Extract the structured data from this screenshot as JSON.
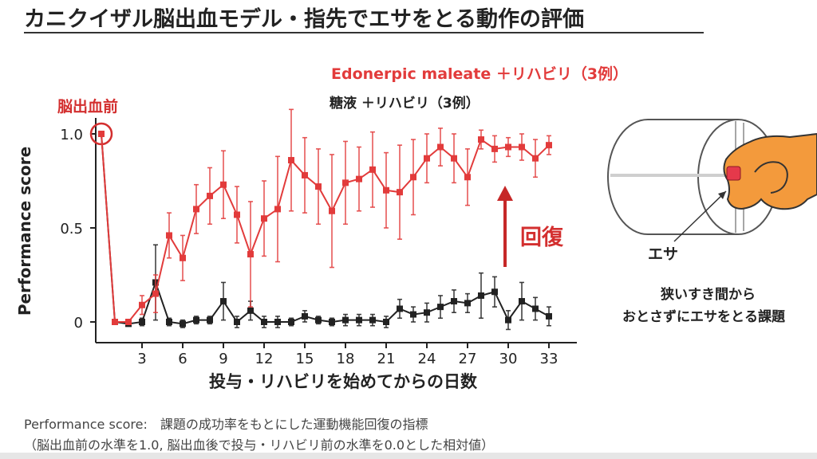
{
  "title": "カニクイザル脳出血モデル・指先でエサをとる動作の評価",
  "chart_data": {
    "type": "line",
    "ylabel": "Performance score",
    "xlabel": "投与・リハビリを始めてからの日数",
    "xlim": [
      -1,
      34.5
    ],
    "ylim": [
      -0.06,
      1.06
    ],
    "yticks": [
      0,
      0.5,
      1.0
    ],
    "ytick_labels": [
      "0",
      "0.5",
      "1.0"
    ],
    "xticks": [
      3,
      6,
      9,
      12,
      15,
      18,
      21,
      24,
      27,
      30,
      33
    ],
    "xtick_labels": [
      "3",
      "6",
      "9",
      "12",
      "15",
      "18",
      "21",
      "24",
      "27",
      "30",
      "33"
    ],
    "pre_label": "脳出血前",
    "pre_point": {
      "x": 0,
      "y": 1.0
    },
    "series": [
      {
        "name": "Edonerpic maleate ＋リハビリ（3例）",
        "color": "#e23b3b",
        "x": [
          0,
          1,
          2,
          3,
          4,
          5,
          6,
          7,
          8,
          9,
          10,
          11,
          12,
          13,
          14,
          15,
          16,
          17,
          18,
          19,
          20,
          21,
          22,
          23,
          24,
          25,
          26,
          27,
          28,
          29,
          30,
          31,
          32,
          33
        ],
        "y": [
          1.0,
          0.0,
          0.0,
          0.09,
          0.15,
          0.46,
          0.34,
          0.6,
          0.67,
          0.73,
          0.57,
          0.36,
          0.55,
          0.6,
          0.86,
          0.78,
          0.72,
          0.59,
          0.74,
          0.76,
          0.81,
          0.7,
          0.69,
          0.77,
          0.87,
          0.93,
          0.87,
          0.77,
          0.97,
          0.92,
          0.93,
          0.93,
          0.87,
          0.94
        ],
        "err": [
          0,
          0,
          0,
          0.05,
          0.1,
          0.12,
          0.12,
          0.13,
          0.15,
          0.18,
          0.15,
          0.28,
          0.2,
          0.28,
          0.27,
          0.2,
          0.2,
          0.3,
          0.22,
          0.17,
          0.2,
          0.2,
          0.25,
          0.2,
          0.13,
          0.1,
          0.13,
          0.15,
          0.05,
          0.07,
          0.05,
          0.07,
          0.1,
          0.05
        ]
      },
      {
        "name": "糖液 ＋リハビリ（3例）",
        "color": "#222222",
        "x": [
          0,
          1,
          2,
          3,
          4,
          5,
          6,
          7,
          8,
          9,
          10,
          11,
          12,
          13,
          14,
          15,
          16,
          17,
          18,
          19,
          20,
          21,
          22,
          23,
          24,
          25,
          26,
          27,
          28,
          29,
          30,
          31,
          32,
          33
        ],
        "y": [
          1.0,
          0.0,
          -0.01,
          0.0,
          0.21,
          0.0,
          -0.01,
          0.01,
          0.01,
          0.11,
          0.0,
          0.06,
          0.0,
          0.0,
          0.0,
          0.03,
          0.01,
          0.0,
          0.01,
          0.01,
          0.01,
          0.0,
          0.07,
          0.04,
          0.05,
          0.08,
          0.11,
          0.1,
          0.14,
          0.16,
          0.01,
          0.11,
          0.07,
          0.03
        ],
        "err": [
          0,
          0,
          0.01,
          0.02,
          0.2,
          0.02,
          0.02,
          0.02,
          0.02,
          0.1,
          0.03,
          0.05,
          0.03,
          0.03,
          0.02,
          0.03,
          0.02,
          0.02,
          0.03,
          0.03,
          0.03,
          0.03,
          0.05,
          0.04,
          0.05,
          0.06,
          0.06,
          0.05,
          0.12,
          0.08,
          0.05,
          0.1,
          0.06,
          0.05
        ]
      }
    ],
    "annotation": {
      "text": "回復",
      "color": "#d32f2f"
    }
  },
  "illustration": {
    "label_food": "エサ",
    "caption_line1": "狭いすき間から",
    "caption_line2": "おとさずにエサをとる課題"
  },
  "footnote": {
    "line1": "Performance score:　課題の成功率をもとにした運動機能回復の指標",
    "line2": "（脳出血前の水準を1.0, 脳出血後で投与・リハビリ前の水準を0.0とした相対値）"
  }
}
